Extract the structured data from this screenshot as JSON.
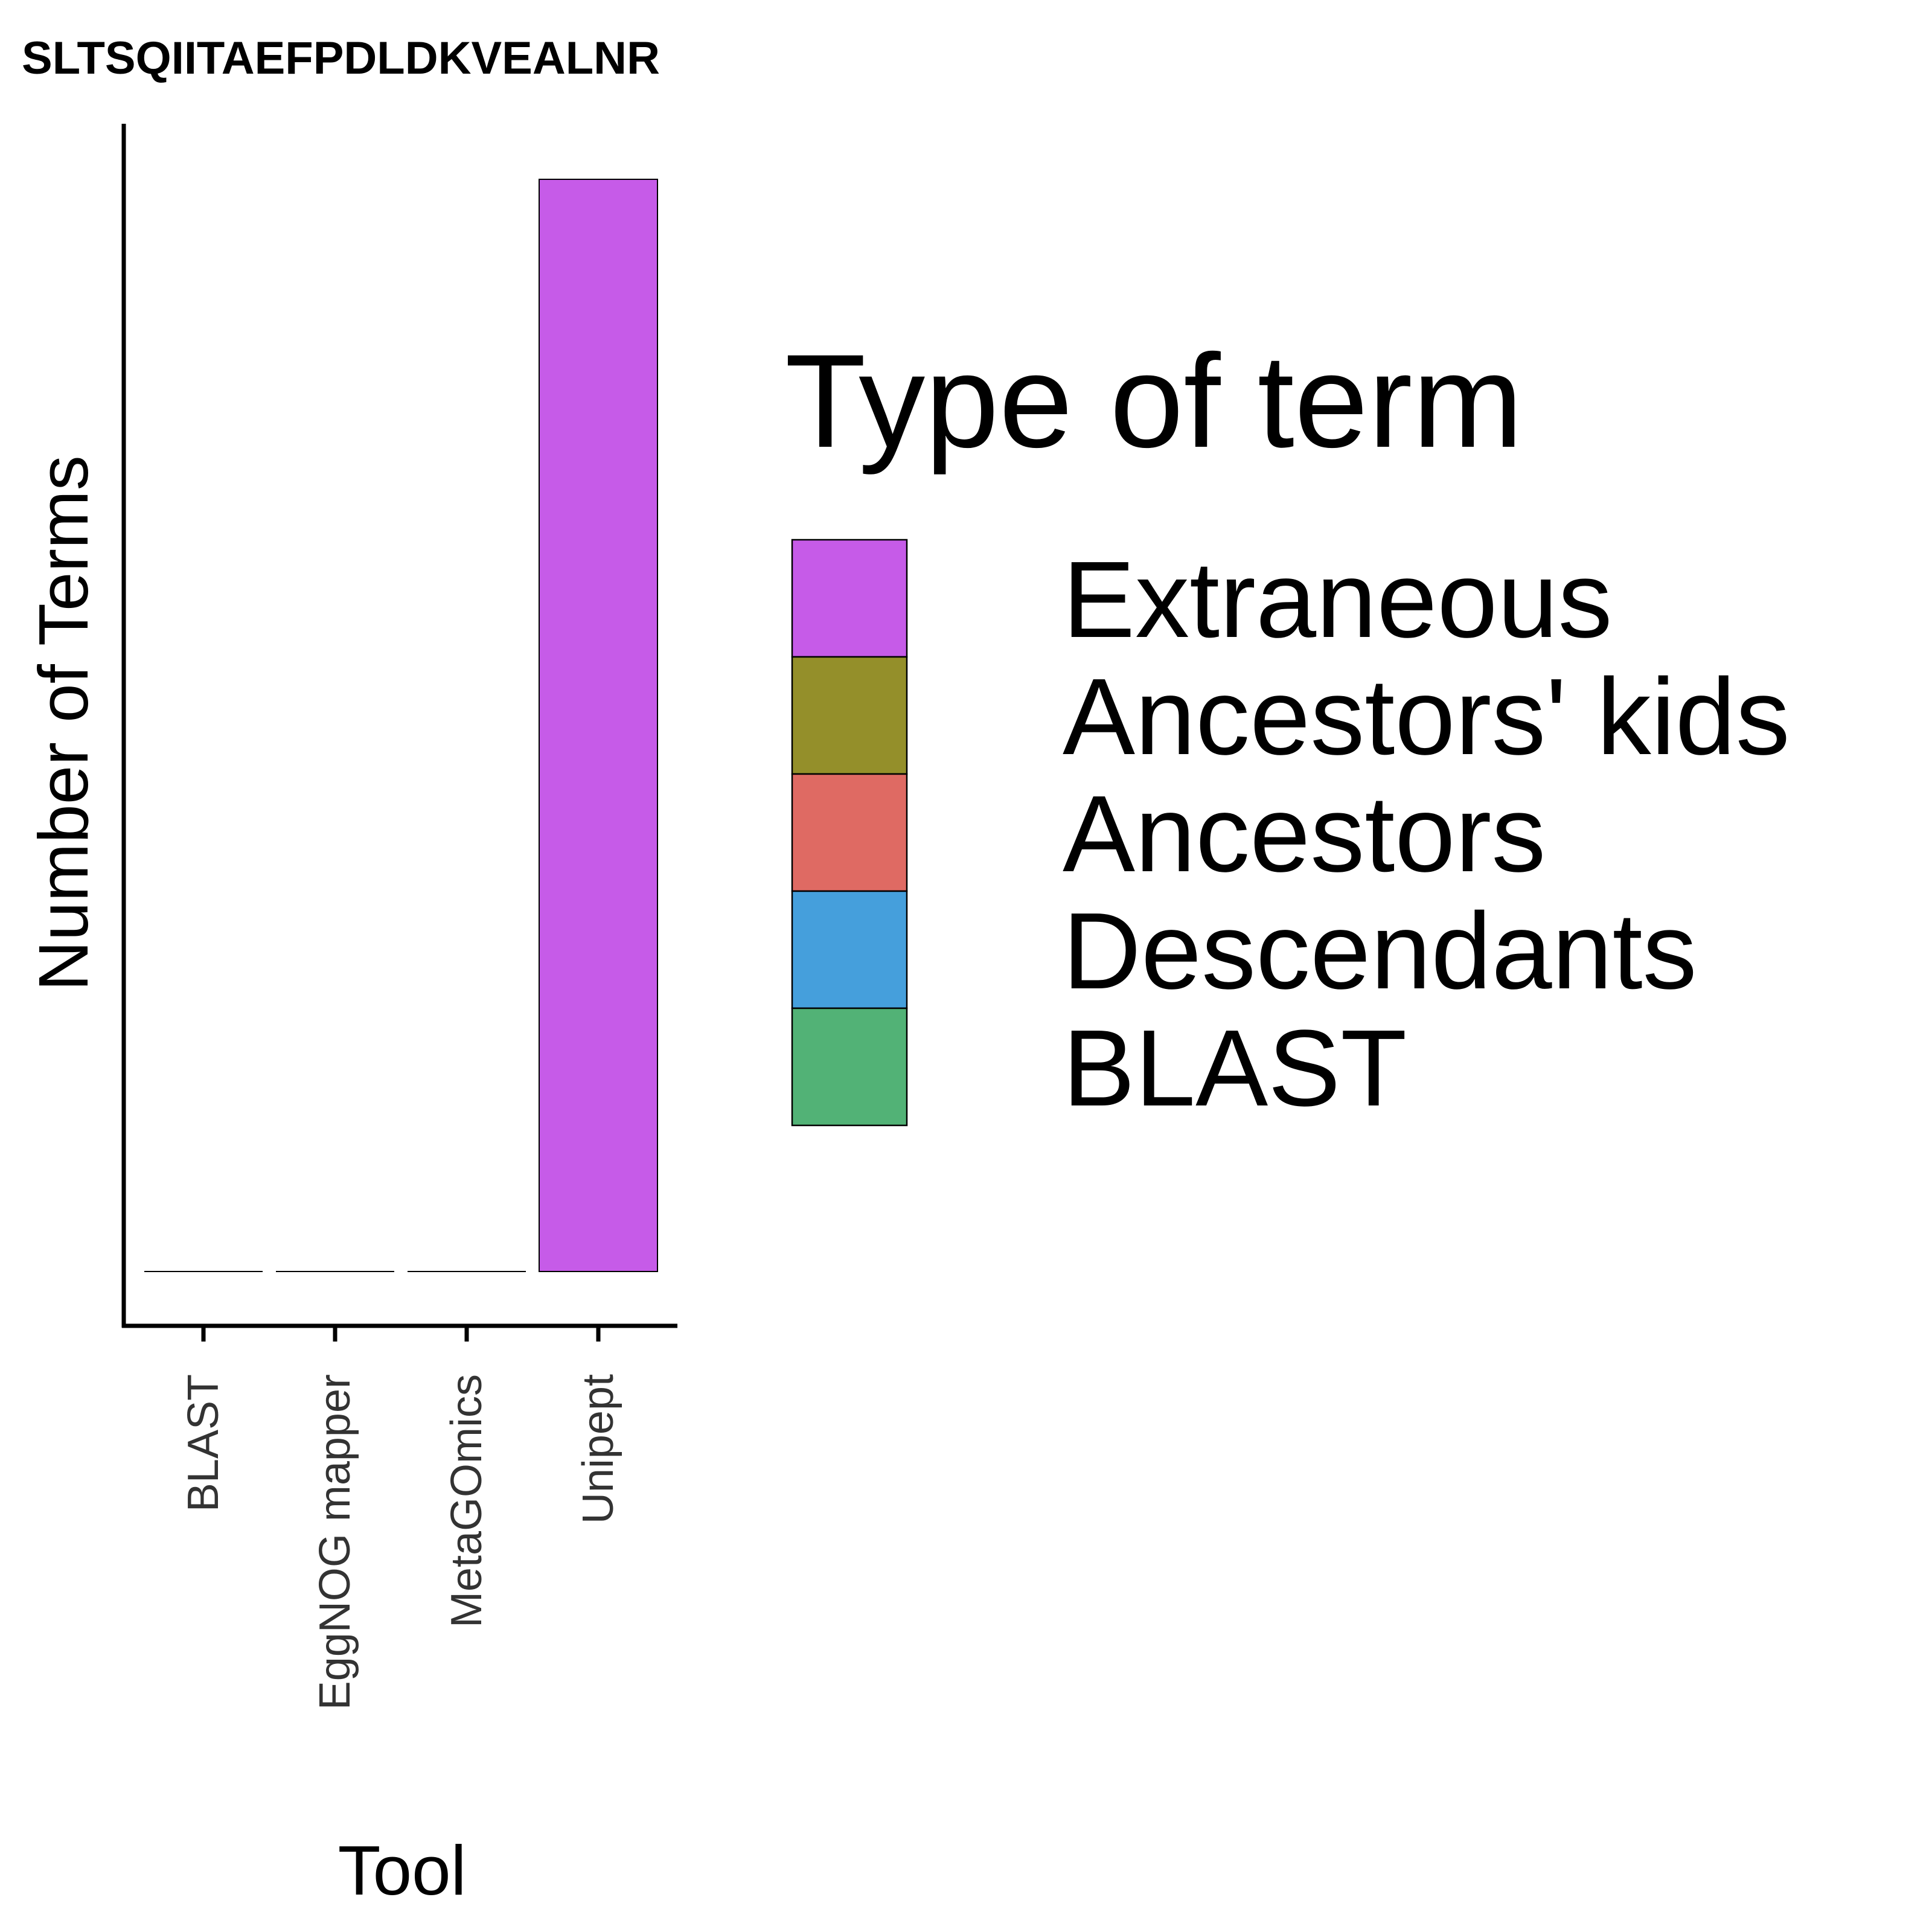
{
  "chart_data": {
    "type": "bar",
    "stacked": true,
    "title": "SLTSQIITAEFPDLDKVEALNR",
    "xlabel": "Tool",
    "ylabel": "Number of Terms",
    "categories": [
      "BLAST",
      "EggNOG mapper",
      "MetaGOmics",
      "Unipept"
    ],
    "series": [
      {
        "name": "Extraneous",
        "color": "#C65BE8",
        "values": [
          0,
          0,
          0,
          1
        ]
      },
      {
        "name": "Ancestors' kids",
        "color": "#948F2A",
        "values": [
          0,
          0,
          0,
          0
        ]
      },
      {
        "name": "Ancestors",
        "color": "#DF6A63",
        "values": [
          0,
          0,
          0,
          0
        ]
      },
      {
        "name": "Descendants",
        "color": "#459FDC",
        "values": [
          0,
          0,
          0,
          0
        ]
      },
      {
        "name": "BLAST",
        "color": "#52B276",
        "values": [
          0,
          0,
          0,
          0
        ]
      }
    ],
    "ylim": [
      0,
      1
    ],
    "y_ticks_shown": false,
    "grid": false,
    "legend": {
      "title": "Type of term",
      "placement": "right"
    }
  }
}
